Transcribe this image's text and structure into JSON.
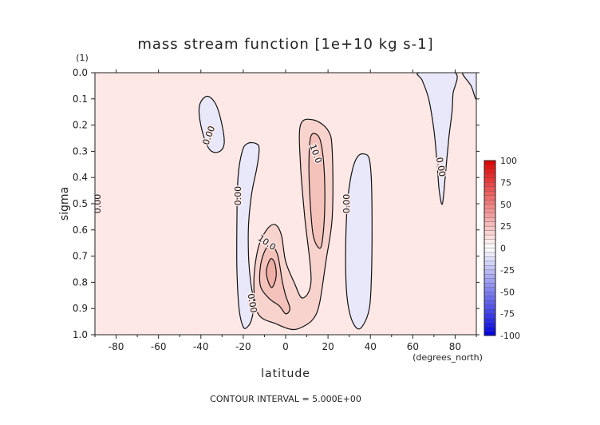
{
  "chart_data": {
    "type": "heatmap",
    "title": "mass stream function [1e+10 kg s-1]",
    "xlabel": "latitude",
    "ylabel": "sigma",
    "x_units": "(degrees_north)",
    "y_units": "(1)",
    "xlim": [
      -90,
      90
    ],
    "ylim": [
      1.0,
      0.0
    ],
    "y_inverted": true,
    "x_ticks": [
      -80,
      -60,
      -40,
      -20,
      0,
      20,
      40,
      60,
      80
    ],
    "y_ticks": [
      0.0,
      0.1,
      0.2,
      0.3,
      0.4,
      0.5,
      0.6,
      0.7,
      0.8,
      0.9,
      1.0
    ],
    "x_tick_labels": [
      "-80",
      "-60",
      "-40",
      "-20",
      "0",
      "20",
      "40",
      "60",
      "80"
    ],
    "y_tick_labels": [
      "0.0",
      "0.1",
      "0.2",
      "0.3",
      "0.4",
      "0.5",
      "0.6",
      "0.7",
      "0.8",
      "0.9",
      "1.0"
    ],
    "colorbar": {
      "min": -100,
      "max": 100,
      "step": 5,
      "tick_values": [
        100,
        75,
        50,
        25,
        0,
        -25,
        -50,
        -75,
        -100
      ],
      "tick_labels": [
        "100",
        "75",
        "50",
        "25",
        "0",
        "-25",
        "-50",
        "-75",
        "-100"
      ],
      "color_max": "#e00000",
      "color_mid": "#ffffff",
      "color_min": "#0000e0"
    },
    "contour_interval_text": "CONTOUR INTERVAL = 5.000E+00",
    "background_fill": "#fde8e6",
    "grid": false,
    "regions": [
      {
        "name": "neg-cell-nh40s-upper",
        "sign": "negative",
        "level": 0,
        "fill": "#e8e8fa",
        "points": [
          [
            -40.5,
            0.12
          ],
          [
            -37,
            0.09
          ],
          [
            -33,
            0.12
          ],
          [
            -30,
            0.2
          ],
          [
            -29,
            0.27
          ],
          [
            -31,
            0.3
          ],
          [
            -35,
            0.3
          ],
          [
            -38,
            0.26
          ],
          [
            -40.5,
            0.18
          ]
        ]
      },
      {
        "name": "neg-cell-20s",
        "sign": "negative",
        "level": 0,
        "fill": "#e8e8fa",
        "points": [
          [
            -20,
            0.97
          ],
          [
            -22,
            0.9
          ],
          [
            -23,
            0.75
          ],
          [
            -23,
            0.58
          ],
          [
            -22.5,
            0.4
          ],
          [
            -20.5,
            0.3
          ],
          [
            -18,
            0.27
          ],
          [
            -14,
            0.27
          ],
          [
            -12.5,
            0.29
          ],
          [
            -13.5,
            0.36
          ],
          [
            -16,
            0.46
          ],
          [
            -17.5,
            0.58
          ],
          [
            -17.5,
            0.7
          ],
          [
            -16.5,
            0.8
          ],
          [
            -15,
            0.88
          ],
          [
            -16,
            0.94
          ],
          [
            -18,
            0.97
          ]
        ]
      },
      {
        "name": "pos-cell-lower",
        "sign": "positive",
        "level": 5,
        "fill": "#f8d3ce",
        "points": [
          [
            -13,
            0.92
          ],
          [
            -15,
            0.8
          ],
          [
            -13,
            0.67
          ],
          [
            -9,
            0.6
          ],
          [
            -5,
            0.58
          ],
          [
            -2,
            0.62
          ],
          [
            0,
            0.72
          ],
          [
            4,
            0.8
          ],
          [
            8,
            0.86
          ],
          [
            12,
            0.79
          ],
          [
            9,
            0.55
          ],
          [
            7,
            0.35
          ],
          [
            7,
            0.2
          ],
          [
            13,
            0.18
          ],
          [
            20,
            0.22
          ],
          [
            22,
            0.3
          ],
          [
            22,
            0.55
          ],
          [
            19,
            0.72
          ],
          [
            16,
            0.88
          ],
          [
            13,
            0.94
          ],
          [
            8,
            0.97
          ],
          [
            3,
            0.98
          ],
          [
            -4,
            0.96
          ]
        ]
      },
      {
        "name": "pos-cell-upper-10",
        "sign": "positive",
        "level": 10,
        "fill": "#f4c2bb",
        "points": [
          [
            12,
            0.24
          ],
          [
            16,
            0.25
          ],
          [
            18,
            0.35
          ],
          [
            18.5,
            0.5
          ],
          [
            17.5,
            0.63
          ],
          [
            16,
            0.67
          ],
          [
            13,
            0.62
          ],
          [
            11.5,
            0.48
          ],
          [
            11,
            0.34
          ]
        ]
      },
      {
        "name": "pos-cell-lower-10",
        "sign": "positive",
        "level": 10,
        "fill": "#f4c2bb",
        "points": [
          [
            -12,
            0.81
          ],
          [
            -11.5,
            0.72
          ],
          [
            -8,
            0.66
          ],
          [
            -4,
            0.69
          ],
          [
            -1.5,
            0.8
          ],
          [
            0,
            0.85
          ],
          [
            2,
            0.9
          ],
          [
            0,
            0.92
          ],
          [
            -3,
            0.89
          ],
          [
            -8,
            0.86
          ]
        ]
      },
      {
        "name": "pos-cell-lower-15",
        "sign": "positive",
        "level": 15,
        "fill": "#eeaea6",
        "points": [
          [
            -9,
            0.75
          ],
          [
            -7,
            0.71
          ],
          [
            -5,
            0.73
          ],
          [
            -4.5,
            0.78
          ],
          [
            -6.5,
            0.82
          ],
          [
            -8.5,
            0.79
          ]
        ]
      },
      {
        "name": "neg-cell-40n",
        "sign": "negative",
        "level": 0,
        "fill": "#e8e8fa",
        "points": [
          [
            30,
            0.91
          ],
          [
            28.5,
            0.8
          ],
          [
            28.5,
            0.6
          ],
          [
            29.5,
            0.47
          ],
          [
            31.5,
            0.37
          ],
          [
            34,
            0.32
          ],
          [
            37,
            0.31
          ],
          [
            39.5,
            0.33
          ],
          [
            40.5,
            0.42
          ],
          [
            40.8,
            0.6
          ],
          [
            40.5,
            0.77
          ],
          [
            39.5,
            0.9
          ],
          [
            36,
            0.97
          ],
          [
            33,
            0.97
          ]
        ]
      },
      {
        "name": "neg-cell-70n",
        "sign": "negative",
        "level": 0,
        "fill": "#e8e8fa",
        "points": [
          [
            63,
            0.0
          ],
          [
            80,
            0.0
          ],
          [
            79,
            0.08
          ],
          [
            78.5,
            0.15
          ],
          [
            77,
            0.25
          ],
          [
            75.5,
            0.38
          ],
          [
            74,
            0.5
          ],
          [
            72.5,
            0.45
          ],
          [
            71.5,
            0.35
          ],
          [
            70,
            0.22
          ],
          [
            67.5,
            0.1
          ],
          [
            64.5,
            0.03
          ]
        ]
      },
      {
        "name": "neg-cell-90n-edge",
        "sign": "negative",
        "level": 0,
        "fill": "#e8e8fa",
        "points": [
          [
            83.5,
            0.0
          ],
          [
            90,
            0.0
          ],
          [
            90,
            0.1
          ],
          [
            87.5,
            0.05
          ]
        ]
      }
    ],
    "contour_labels": [
      {
        "text": "0.00",
        "lat": -36,
        "sigma": 0.24,
        "rotate": -70
      },
      {
        "text": "0.00",
        "lat": -88.5,
        "sigma": 0.5,
        "rotate": -90
      },
      {
        "text": "0.00",
        "lat": -22.3,
        "sigma": 0.47,
        "rotate": -90
      },
      {
        "text": "10.0",
        "lat": 14,
        "sigma": 0.31,
        "rotate": 70
      },
      {
        "text": "10.0",
        "lat": -9,
        "sigma": 0.65,
        "rotate": 35
      },
      {
        "text": "0.00",
        "lat": -16,
        "sigma": 0.88,
        "rotate": 80
      },
      {
        "text": "0.00",
        "lat": 29,
        "sigma": 0.5,
        "rotate": -90
      },
      {
        "text": "0.00",
        "lat": 73,
        "sigma": 0.36,
        "rotate": 80
      }
    ]
  }
}
